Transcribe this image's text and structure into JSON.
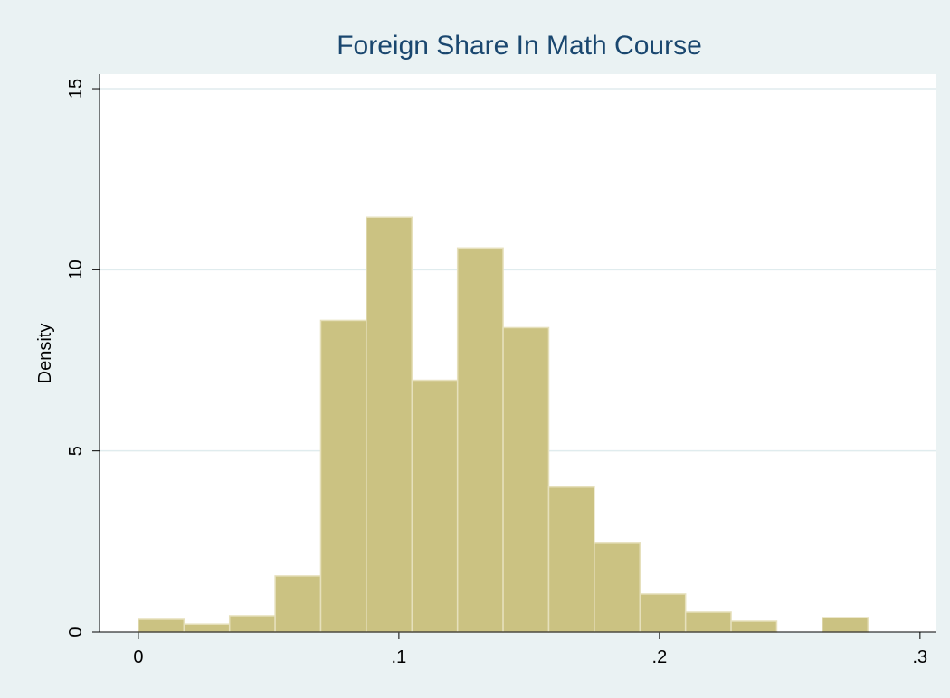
{
  "chart_data": {
    "type": "histogram",
    "title": "Foreign Share In Math Course",
    "ylabel": "Density",
    "bins": [
      0,
      0.0175,
      0.035,
      0.0525,
      0.07,
      0.0875,
      0.105,
      0.1225,
      0.14,
      0.1575,
      0.175,
      0.1925,
      0.21,
      0.2275,
      0.245,
      0.2625,
      0.28
    ],
    "values": [
      0.35,
      0.22,
      0.45,
      1.55,
      8.6,
      11.45,
      6.95,
      10.6,
      8.4,
      4.0,
      2.45,
      1.05,
      0.55,
      0.3,
      0,
      0.4
    ],
    "color": "#cbc282",
    "xlim": [
      -0.0149,
      0.3063
    ],
    "ylim": [
      0,
      15.4
    ],
    "xticks": [
      0,
      {
        "value": 0.1,
        "label": ".1"
      },
      {
        "value": 0.2,
        "label": ".2"
      },
      {
        "value": 0.3,
        "label": ".3"
      }
    ],
    "yticks": [
      0,
      5,
      10,
      15
    ],
    "grid": true
  }
}
